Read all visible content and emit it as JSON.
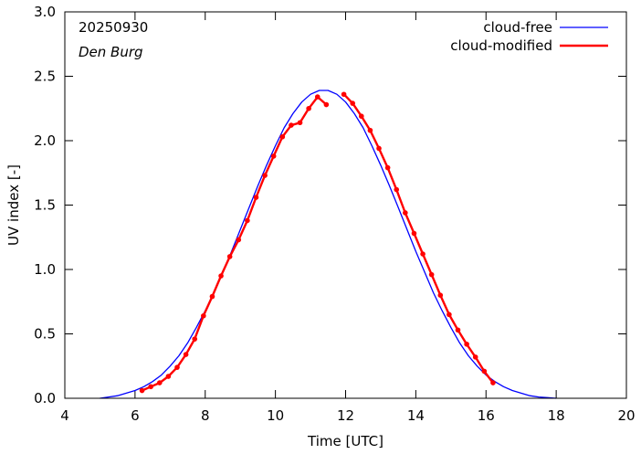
{
  "chart_data": {
    "type": "line",
    "title": "",
    "annotations": {
      "date": "20250930",
      "station": "Den Burg"
    },
    "xlabel": "Time  [UTC]",
    "ylabel": "UV index  [-]",
    "xlim": [
      4,
      20
    ],
    "ylim": [
      0,
      3.0
    ],
    "x_ticks": [
      4,
      6,
      8,
      10,
      12,
      14,
      16,
      18,
      20
    ],
    "x_tick_labels": [
      "4",
      "6",
      "8",
      "10",
      "12",
      "14",
      "16",
      "18",
      "20"
    ],
    "y_ticks": [
      0,
      0.5,
      1.0,
      1.5,
      2.0,
      2.5,
      3.0
    ],
    "y_tick_labels": [
      "0.0",
      "0.5",
      "1.0",
      "1.5",
      "2.0",
      "2.5",
      "3.0"
    ],
    "grid": false,
    "legend_position": "top-right",
    "series": [
      {
        "name": "cloud-free",
        "color": "#0000ff",
        "markers": false,
        "x": [
          5.0,
          5.25,
          5.5,
          5.75,
          6.0,
          6.25,
          6.5,
          6.75,
          7.0,
          7.25,
          7.5,
          7.75,
          8.0,
          8.25,
          8.5,
          8.75,
          9.0,
          9.25,
          9.5,
          9.75,
          10.0,
          10.25,
          10.5,
          10.75,
          11.0,
          11.25,
          11.5,
          11.75,
          12.0,
          12.25,
          12.5,
          12.75,
          13.0,
          13.25,
          13.5,
          13.75,
          14.0,
          14.25,
          14.5,
          14.75,
          15.0,
          15.25,
          15.5,
          15.75,
          16.0,
          16.25,
          16.5,
          16.75,
          17.0,
          17.25,
          17.5,
          17.75,
          18.0
        ],
        "values": [
          0.0,
          0.01,
          0.02,
          0.04,
          0.06,
          0.09,
          0.13,
          0.18,
          0.25,
          0.33,
          0.43,
          0.55,
          0.68,
          0.82,
          0.98,
          1.14,
          1.31,
          1.48,
          1.65,
          1.81,
          1.96,
          2.1,
          2.21,
          2.3,
          2.36,
          2.39,
          2.39,
          2.36,
          2.3,
          2.21,
          2.1,
          1.96,
          1.81,
          1.65,
          1.48,
          1.31,
          1.14,
          0.98,
          0.82,
          0.68,
          0.55,
          0.43,
          0.33,
          0.25,
          0.18,
          0.13,
          0.09,
          0.06,
          0.04,
          0.02,
          0.01,
          0.005,
          0.0
        ]
      },
      {
        "name": "cloud-modified",
        "color": "#ff0000",
        "markers": true,
        "x": [
          6.2,
          6.45,
          6.7,
          6.95,
          7.2,
          7.45,
          7.7,
          7.95,
          8.2,
          8.45,
          8.7,
          8.95,
          9.2,
          9.45,
          9.7,
          9.95,
          10.2,
          10.45,
          10.7,
          10.95,
          11.2,
          11.45,
          11.95,
          12.2,
          12.45,
          12.7,
          12.95,
          13.2,
          13.45,
          13.7,
          13.95,
          14.2,
          14.45,
          14.7,
          14.95,
          15.2,
          15.45,
          15.7,
          15.95,
          16.2
        ],
        "values": [
          0.06,
          0.09,
          0.12,
          0.17,
          0.24,
          0.34,
          0.46,
          0.64,
          0.79,
          0.95,
          1.1,
          1.23,
          1.38,
          1.56,
          1.73,
          1.88,
          2.03,
          2.12,
          2.14,
          2.25,
          2.34,
          2.28,
          2.36,
          2.29,
          2.19,
          2.08,
          1.94,
          1.79,
          1.62,
          1.44,
          1.28,
          1.12,
          0.96,
          0.8,
          0.65,
          0.53,
          0.42,
          0.32,
          0.21,
          0.12
        ]
      }
    ]
  }
}
